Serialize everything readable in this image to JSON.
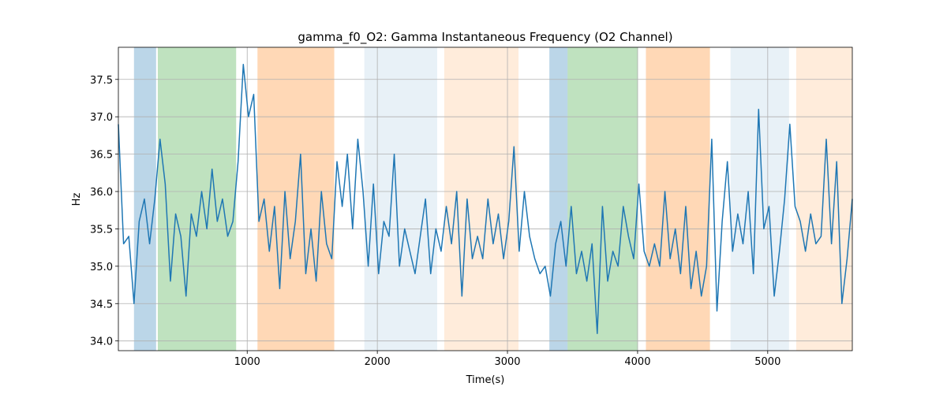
{
  "chart_data": {
    "type": "line",
    "title": "gamma_f0_O2: Gamma Instantaneous Frequency (O2 Channel)",
    "xlabel": "Time(s)",
    "ylabel": "Hz",
    "color": "#1f77b4",
    "grid": true,
    "xlim": [
      10,
      5650
    ],
    "ylim": [
      33.87,
      37.93
    ],
    "xticks": [
      1000,
      2000,
      3000,
      4000,
      5000
    ],
    "yticks": [
      {
        "value": 34,
        "label": "34.0"
      },
      34.5,
      {
        "value": 35,
        "label": "35.0"
      },
      35.5,
      {
        "value": 36,
        "label": "36.0"
      },
      36.5,
      {
        "value": 37,
        "label": "37.0"
      },
      37.5
    ],
    "spans": [
      {
        "start": 130,
        "end": 300,
        "color": "#1f77b4",
        "alpha": 0.3
      },
      {
        "start": 313,
        "end": 915,
        "color": "#2ca02c",
        "alpha": 0.3
      },
      {
        "start": 1079,
        "end": 1669,
        "color": "#ff7f0e",
        "alpha": 0.3
      },
      {
        "start": 1900,
        "end": 2460,
        "color": "#1f77b4",
        "alpha": 0.1
      },
      {
        "start": 2514,
        "end": 3085,
        "color": "#ff7f0e",
        "alpha": 0.15
      },
      {
        "start": 3322,
        "end": 3462,
        "color": "#1f77b4",
        "alpha": 0.3
      },
      {
        "start": 3462,
        "end": 4003,
        "color": "#2ca02c",
        "alpha": 0.3
      },
      {
        "start": 4064,
        "end": 4556,
        "color": "#ff7f0e",
        "alpha": 0.3
      },
      {
        "start": 4714,
        "end": 5164,
        "color": "#1f77b4",
        "alpha": 0.1
      },
      {
        "start": 5219,
        "end": 5663,
        "color": "#ff7f0e",
        "alpha": 0.15
      }
    ],
    "x": [
      10,
      50,
      90,
      130,
      170,
      210,
      250,
      290,
      330,
      370,
      410,
      450,
      490,
      530,
      570,
      610,
      650,
      690,
      730,
      770,
      810,
      850,
      890,
      930,
      970,
      1010,
      1050,
      1090,
      1130,
      1170,
      1210,
      1250,
      1290,
      1330,
      1370,
      1410,
      1450,
      1490,
      1530,
      1570,
      1610,
      1650,
      1690,
      1730,
      1770,
      1810,
      1850,
      1890,
      1930,
      1970,
      2010,
      2050,
      2090,
      2130,
      2170,
      2210,
      2250,
      2290,
      2330,
      2370,
      2410,
      2450,
      2490,
      2530,
      2570,
      2610,
      2650,
      2690,
      2730,
      2770,
      2810,
      2850,
      2890,
      2930,
      2970,
      3010,
      3050,
      3090,
      3130,
      3170,
      3210,
      3250,
      3290,
      3330,
      3370,
      3410,
      3450,
      3490,
      3530,
      3570,
      3610,
      3650,
      3690,
      3730,
      3770,
      3810,
      3850,
      3890,
      3930,
      3970,
      4010,
      4050,
      4090,
      4130,
      4170,
      4210,
      4250,
      4290,
      4330,
      4370,
      4410,
      4450,
      4490,
      4530,
      4570,
      4610,
      4650,
      4690,
      4730,
      4770,
      4810,
      4850,
      4890,
      4930,
      4970,
      5010,
      5050,
      5090,
      5130,
      5170,
      5210,
      5250,
      5290,
      5330,
      5370,
      5410,
      5450,
      5490,
      5530,
      5570,
      5610,
      5650
    ],
    "values": [
      36.9,
      35.3,
      35.4,
      34.5,
      35.6,
      35.9,
      35.3,
      35.9,
      36.7,
      36.1,
      34.8,
      35.7,
      35.4,
      34.6,
      35.7,
      35.4,
      36.0,
      35.5,
      36.3,
      35.6,
      35.9,
      35.4,
      35.6,
      36.4,
      37.7,
      37.0,
      37.3,
      35.6,
      35.9,
      35.2,
      35.8,
      34.7,
      36.0,
      35.1,
      35.6,
      36.5,
      34.9,
      35.5,
      34.8,
      36.0,
      35.3,
      35.1,
      36.4,
      35.8,
      36.5,
      35.5,
      36.7,
      36.0,
      35.0,
      36.1,
      34.9,
      35.6,
      35.4,
      36.5,
      35.0,
      35.5,
      35.2,
      34.9,
      35.4,
      35.9,
      34.9,
      35.5,
      35.2,
      35.8,
      35.3,
      36.0,
      34.6,
      35.9,
      35.1,
      35.4,
      35.1,
      35.9,
      35.3,
      35.7,
      35.1,
      35.6,
      36.6,
      35.2,
      36.0,
      35.4,
      35.1,
      34.9,
      35.0,
      34.6,
      35.3,
      35.6,
      35.0,
      35.8,
      34.9,
      35.2,
      34.8,
      35.3,
      34.1,
      35.8,
      34.8,
      35.2,
      35.0,
      35.8,
      35.4,
      35.1,
      36.1,
      35.2,
      35.0,
      35.3,
      35.0,
      36.0,
      35.1,
      35.5,
      34.9,
      35.8,
      34.7,
      35.2,
      34.6,
      35.0,
      36.7,
      34.4,
      35.6,
      36.4,
      35.2,
      35.7,
      35.3,
      36.0,
      34.9,
      37.1,
      35.5,
      35.8,
      34.6,
      35.2,
      35.9,
      36.9,
      35.8,
      35.6,
      35.2,
      35.7,
      35.3,
      35.4,
      36.7,
      35.3,
      36.4,
      34.5,
      35.1,
      35.9
    ]
  }
}
